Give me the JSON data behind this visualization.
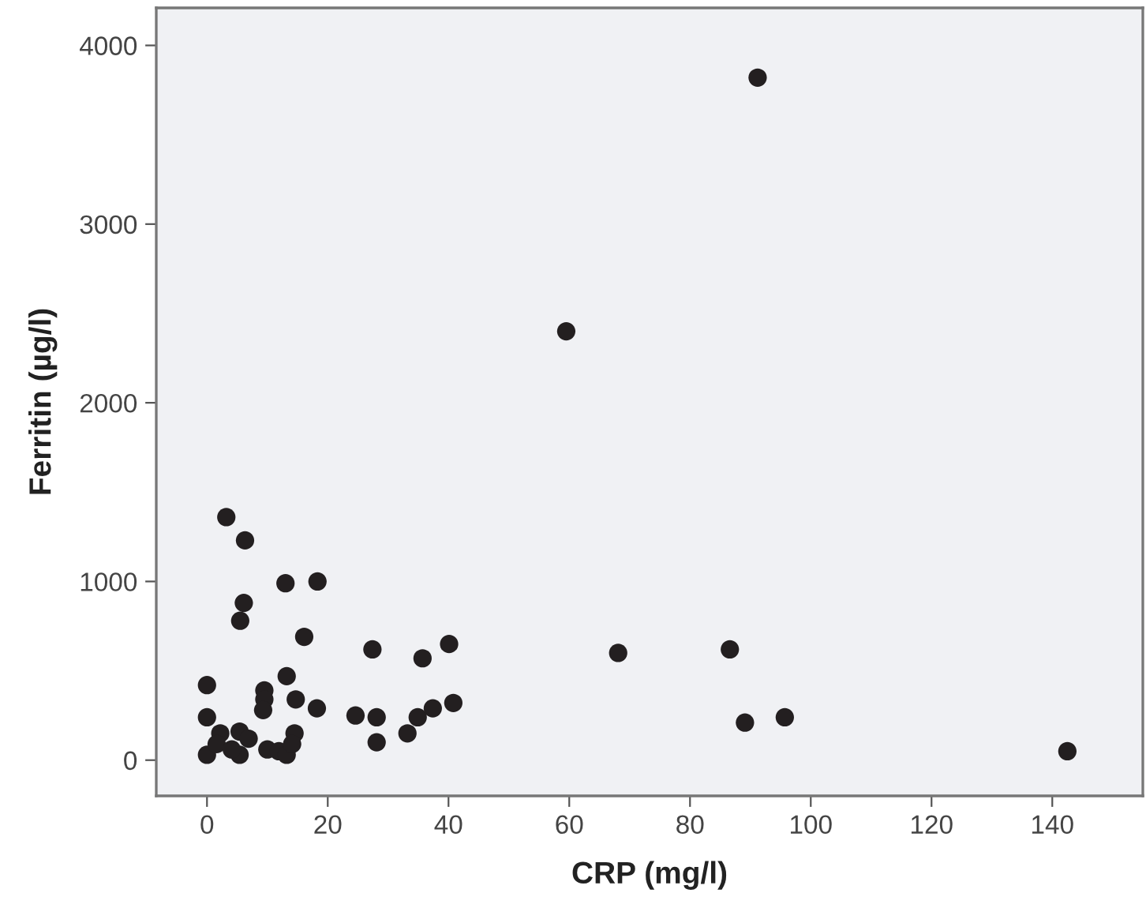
{
  "chart_data": {
    "type": "scatter",
    "xlabel": "CRP (mg/l)",
    "ylabel": "Ferritin (µg/l)",
    "xlim": [
      -8.4,
      155
    ],
    "ylim": [
      -200,
      4210
    ],
    "xticks": [
      0,
      20,
      40,
      60,
      80,
      100,
      120,
      140
    ],
    "yticks": [
      0,
      1000,
      2000,
      3000,
      4000
    ],
    "grid": false,
    "marker": "circle",
    "series": [
      {
        "color": "#231f20",
        "x": [
          91.2,
          59.5,
          68.1,
          86.6,
          89.1,
          95.7,
          142.5,
          3.2,
          6.3,
          13.0,
          18.3,
          6.1,
          5.5,
          16.1,
          27.4,
          35.7,
          40.1,
          13.2,
          0,
          9.5,
          9.5,
          9.3,
          14.7,
          18.2,
          0,
          24.6,
          28.1,
          28.1,
          33.2,
          34.9,
          37.4,
          40.8,
          0,
          2.2,
          1.6,
          3.2,
          5.4,
          6.9,
          5.4,
          4.1,
          10,
          11.9,
          13.2,
          14.5,
          14.1
        ],
        "values": [
          3820,
          2400,
          600,
          620,
          210,
          240,
          50,
          1360,
          1230,
          990,
          1000,
          880,
          780,
          690,
          620,
          570,
          650,
          470,
          420,
          390,
          340,
          280,
          340,
          290,
          240,
          250,
          240,
          100,
          150,
          240,
          290,
          320,
          30,
          150,
          90,
          null,
          160,
          120,
          30,
          60,
          60,
          50,
          30,
          150,
          90
        ]
      }
    ]
  }
}
